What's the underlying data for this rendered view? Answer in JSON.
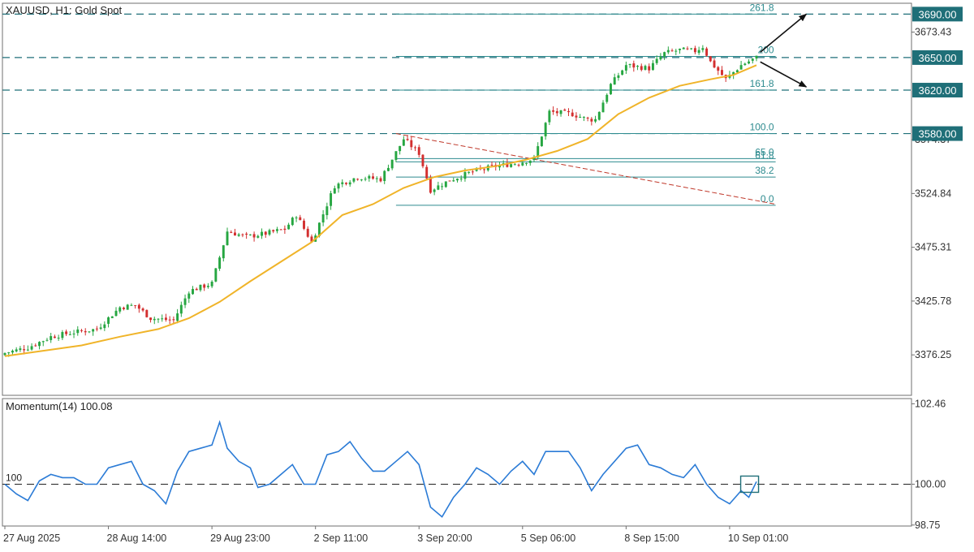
{
  "chart_data": [
    {
      "id": "price",
      "type": "candlestick",
      "title": "XAUUSD, H1:  Gold Spot",
      "symbol": "XAUUSD",
      "timeframe": "H1",
      "instrument": "Gold Spot",
      "ylim": [
        3339.0,
        3700.0
      ],
      "ytick_values": [
        3376.25,
        3425.78,
        3475.31,
        3524.84,
        3574.37,
        3673.43
      ],
      "ytick_labels": [
        "3376.25",
        "3425.78",
        "3475.31",
        "3524.84",
        "3574.37",
        "3673.43"
      ],
      "x_range_index": [
        0,
        196
      ],
      "xtick_index": [
        0,
        27,
        54,
        81,
        108,
        135,
        162,
        189
      ],
      "xtick_labels": [
        "27 Aug 2025",
        "28 Aug 14:00",
        "29 Aug 23:00",
        "2 Sep 11:00",
        "3 Sep 20:00",
        "5 Sep 06:00",
        "8 Sep 15:00",
        "10 Sep 01:00"
      ],
      "grid": false,
      "candle_colors": {
        "bull": "#26a641",
        "bear": "#d32f2f"
      },
      "close_path": [
        [
          0,
          3378
        ],
        [
          6,
          3383
        ],
        [
          12,
          3393
        ],
        [
          18,
          3397
        ],
        [
          24,
          3400
        ],
        [
          30,
          3420
        ],
        [
          34,
          3422
        ],
        [
          38,
          3410
        ],
        [
          44,
          3408
        ],
        [
          48,
          3435
        ],
        [
          54,
          3442
        ],
        [
          58,
          3490
        ],
        [
          63,
          3485
        ],
        [
          68,
          3488
        ],
        [
          73,
          3492
        ],
        [
          76,
          3505
        ],
        [
          80,
          3480
        ],
        [
          86,
          3532
        ],
        [
          92,
          3540
        ],
        [
          98,
          3538
        ],
        [
          104,
          3575
        ],
        [
          108,
          3562
        ],
        [
          111,
          3528
        ],
        [
          116,
          3537
        ],
        [
          122,
          3545
        ],
        [
          128,
          3550
        ],
        [
          134,
          3553
        ],
        [
          138,
          3557
        ],
        [
          142,
          3600
        ],
        [
          148,
          3598
        ],
        [
          152,
          3593
        ],
        [
          154,
          3593
        ],
        [
          158,
          3625
        ],
        [
          162,
          3643
        ],
        [
          168,
          3640
        ],
        [
          172,
          3654
        ],
        [
          176,
          3657
        ],
        [
          180,
          3656
        ],
        [
          182,
          3660
        ],
        [
          184,
          3646
        ],
        [
          188,
          3630
        ],
        [
          192,
          3643
        ],
        [
          196,
          3650
        ]
      ],
      "moving_average": {
        "color": "#f0b429",
        "points": [
          [
            0,
            3375
          ],
          [
            10,
            3380
          ],
          [
            20,
            3385
          ],
          [
            30,
            3393
          ],
          [
            40,
            3400
          ],
          [
            48,
            3410
          ],
          [
            56,
            3425
          ],
          [
            64,
            3444
          ],
          [
            72,
            3462
          ],
          [
            80,
            3480
          ],
          [
            88,
            3505
          ],
          [
            96,
            3515
          ],
          [
            104,
            3530
          ],
          [
            112,
            3540
          ],
          [
            120,
            3546
          ],
          [
            128,
            3550
          ],
          [
            136,
            3556
          ],
          [
            144,
            3564
          ],
          [
            152,
            3575
          ],
          [
            160,
            3598
          ],
          [
            168,
            3613
          ],
          [
            176,
            3624
          ],
          [
            184,
            3630
          ],
          [
            190,
            3634
          ],
          [
            196,
            3643
          ]
        ]
      },
      "price_levels": [
        {
          "value": 3690.0,
          "label": "3690.00",
          "color": "#1f6f78"
        },
        {
          "value": 3650.0,
          "label": "3650.00",
          "color": "#1f6f78"
        },
        {
          "value": 3620.0,
          "label": "3620.00",
          "color": "#1f6f78"
        },
        {
          "value": 3580.0,
          "label": "3580.00",
          "color": "#1f6f78"
        }
      ],
      "fibonacci": {
        "color": "#2e8b8f",
        "x_index": [
          102,
          201
        ],
        "levels": [
          {
            "label": "261.8",
            "value": 3690.0
          },
          {
            "label": "200",
            "value": 3651.0
          },
          {
            "label": "161.8",
            "value": 3620.0
          },
          {
            "label": "100.0",
            "value": 3580.0
          },
          {
            "label": "65.0",
            "value": 3557.0
          },
          {
            "label": "61.8",
            "value": 3554.0
          },
          {
            "label": "38.2",
            "value": 3540.0
          },
          {
            "label": "0.0",
            "value": 3514.0
          }
        ]
      },
      "trend_line": {
        "color": "#c0392b",
        "from": [
          102,
          3580
        ],
        "to": [
          201,
          3515
        ]
      },
      "arrows": [
        {
          "from": [
            197,
            3655
          ],
          "to": [
            209,
            3690
          ],
          "direction": "up"
        },
        {
          "from": [
            197,
            3646
          ],
          "to": [
            209,
            3623
          ],
          "direction": "down"
        }
      ]
    },
    {
      "id": "momentum",
      "type": "line",
      "title": "Momentum(14) 100.08",
      "indicator": "Momentum",
      "period": 14,
      "last_value": 100.08,
      "color": "#2b7bd6",
      "ylim": [
        98.72,
        102.62
      ],
      "ytick_values": [
        98.75,
        100.0,
        102.46
      ],
      "ytick_labels": [
        "98.75",
        "100.00",
        "102.46"
      ],
      "reference_line": {
        "value": 100.0,
        "label": "100"
      },
      "x_range_index": [
        0,
        196
      ],
      "points": [
        [
          0,
          100.0
        ],
        [
          3,
          99.7
        ],
        [
          6,
          99.5
        ],
        [
          9,
          100.1
        ],
        [
          12,
          100.3
        ],
        [
          15,
          100.2
        ],
        [
          18,
          100.2
        ],
        [
          21,
          100.0
        ],
        [
          24,
          100.0
        ],
        [
          27,
          100.5
        ],
        [
          30,
          100.6
        ],
        [
          33,
          100.7
        ],
        [
          36,
          100.0
        ],
        [
          39,
          99.8
        ],
        [
          42,
          99.4
        ],
        [
          45,
          100.4
        ],
        [
          48,
          101.0
        ],
        [
          51,
          101.1
        ],
        [
          54,
          101.2
        ],
        [
          56,
          101.9
        ],
        [
          58,
          101.1
        ],
        [
          61,
          100.7
        ],
        [
          64,
          100.5
        ],
        [
          66,
          99.9
        ],
        [
          69,
          100.0
        ],
        [
          72,
          100.3
        ],
        [
          75,
          100.6
        ],
        [
          78,
          100.0
        ],
        [
          81,
          100.0
        ],
        [
          84,
          100.9
        ],
        [
          87,
          101.0
        ],
        [
          90,
          101.3
        ],
        [
          93,
          100.8
        ],
        [
          96,
          100.4
        ],
        [
          99,
          100.4
        ],
        [
          102,
          100.7
        ],
        [
          105,
          101.0
        ],
        [
          108,
          100.6
        ],
        [
          111,
          99.3
        ],
        [
          114,
          99.0
        ],
        [
          117,
          99.6
        ],
        [
          120,
          100.0
        ],
        [
          123,
          100.5
        ],
        [
          126,
          100.3
        ],
        [
          129,
          100.0
        ],
        [
          132,
          100.4
        ],
        [
          135,
          100.7
        ],
        [
          138,
          100.3
        ],
        [
          141,
          101.0
        ],
        [
          144,
          101.0
        ],
        [
          147,
          101.0
        ],
        [
          150,
          100.5
        ],
        [
          153,
          99.8
        ],
        [
          156,
          100.3
        ],
        [
          159,
          100.7
        ],
        [
          162,
          101.1
        ],
        [
          165,
          101.2
        ],
        [
          168,
          100.6
        ],
        [
          171,
          100.5
        ],
        [
          174,
          100.3
        ],
        [
          177,
          100.2
        ],
        [
          180,
          100.6
        ],
        [
          183,
          100.0
        ],
        [
          186,
          99.6
        ],
        [
          189,
          99.4
        ],
        [
          192,
          99.8
        ],
        [
          194,
          99.6
        ],
        [
          196,
          100.08
        ]
      ],
      "highlight_box_index": 194
    }
  ]
}
